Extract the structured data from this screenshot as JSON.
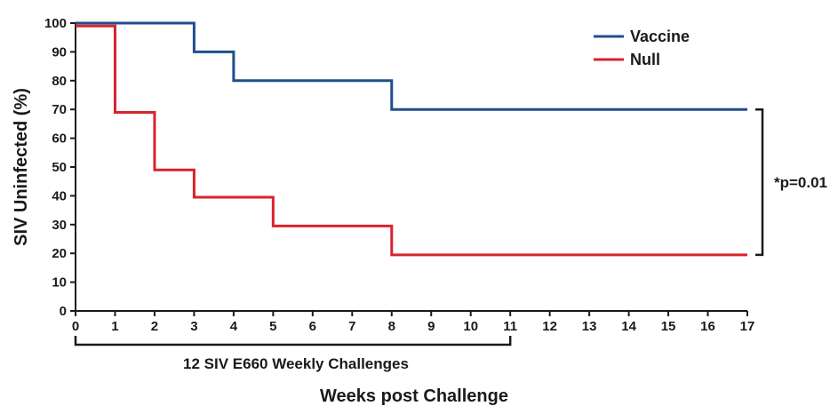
{
  "chart_data": {
    "type": "line",
    "step": true,
    "title": "",
    "xlabel": "Weeks post Challenge",
    "ylabel": "SIV Uninfected (%)",
    "xlim": [
      0,
      17
    ],
    "ylim": [
      0,
      100
    ],
    "xticks": [
      0,
      1,
      2,
      3,
      4,
      5,
      6,
      7,
      8,
      9,
      10,
      11,
      12,
      13,
      14,
      15,
      16,
      17
    ],
    "yticks": [
      0,
      10,
      20,
      30,
      40,
      50,
      60,
      70,
      80,
      90,
      100
    ],
    "grid": false,
    "legend_position": "top-right",
    "series": [
      {
        "name": "Vaccine",
        "color": "#1f4e8c",
        "x": [
          0,
          3,
          4,
          8,
          17
        ],
        "y": [
          100,
          90,
          80,
          70,
          70
        ]
      },
      {
        "name": "Null",
        "color": "#d9232e",
        "x": [
          0,
          1,
          2,
          3,
          5,
          8,
          17
        ],
        "y": [
          99,
          69,
          49,
          39.5,
          29.5,
          19.5,
          19.5
        ]
      }
    ],
    "annotations": {
      "significance_label": "*p=0.01",
      "significance_between_y": [
        70,
        19.5
      ],
      "challenge_bracket_label": "12 SIV E660 Weekly Challenges",
      "challenge_bracket_x": [
        0,
        11
      ]
    }
  }
}
